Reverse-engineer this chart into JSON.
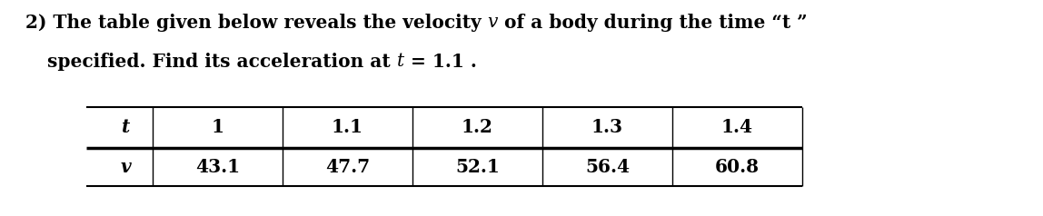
{
  "line1_plain1": "2) The table given below reveals the velocity ",
  "line1_italic": "v",
  "line1_plain2": " of a body during the time “t ”",
  "line2_plain1": "specified. Find its acceleration at ",
  "line2_italic": "t",
  "line2_plain2": " = 1.1 .",
  "row_label_t": "t",
  "row_label_v": "v",
  "col_values_t": [
    "1",
    "1.1",
    "1.2",
    "1.3",
    "1.4"
  ],
  "col_values_v": [
    "43.1",
    "47.7",
    "52.1",
    "56.4",
    "60.8"
  ],
  "bg_color": "#ffffff",
  "text_color": "#000000",
  "font_size": 14.5
}
